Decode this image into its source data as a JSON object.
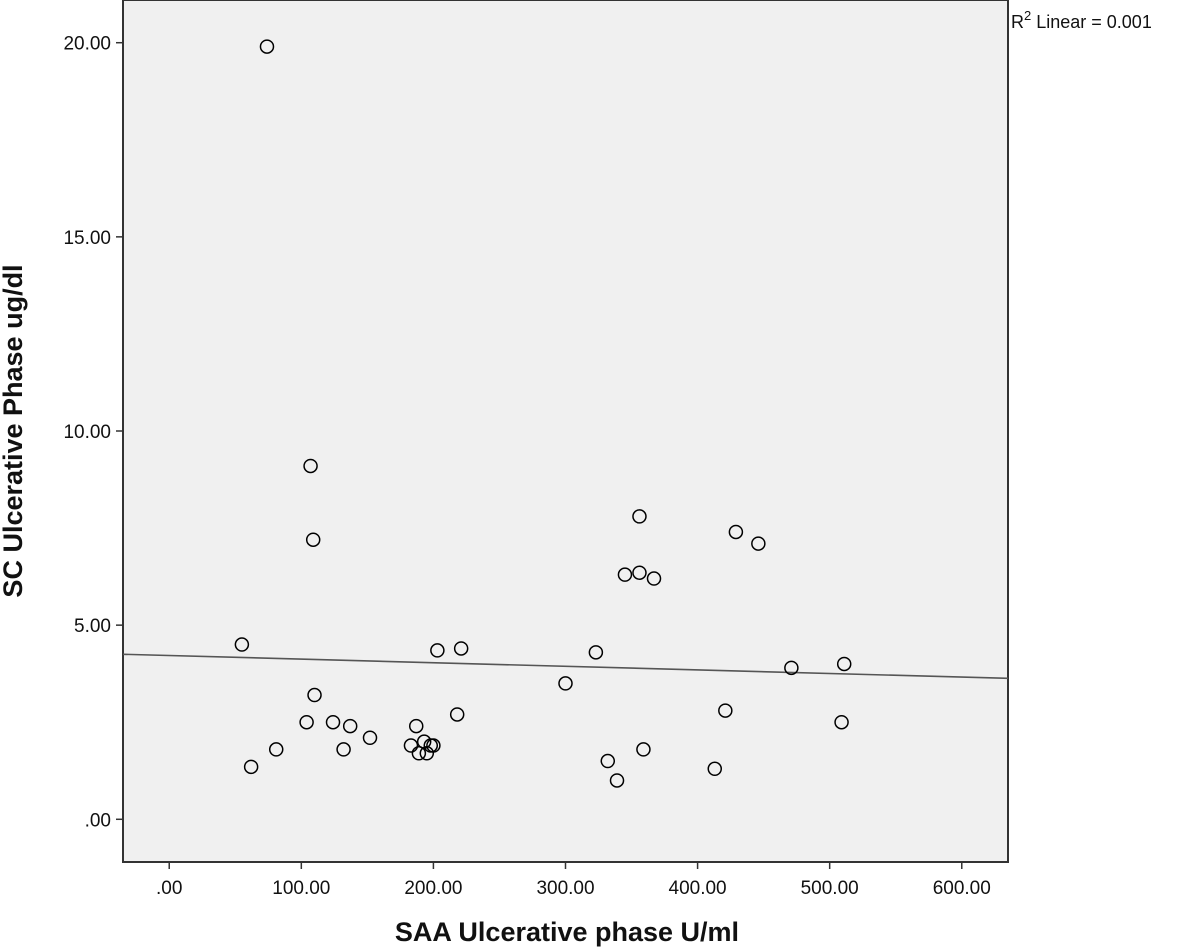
{
  "chart_data": {
    "type": "scatter",
    "xlabel": "SAA Ulcerative phase U/ml",
    "ylabel": "SC Ulcerative Phase ug/dl",
    "xlim": [
      -35,
      635
    ],
    "ylim": [
      -1.1,
      21.1
    ],
    "x_ticks": [
      0,
      100,
      200,
      300,
      400,
      500,
      600
    ],
    "x_tick_labels": [
      ".00",
      "100.00",
      "200.00",
      "300.00",
      "400.00",
      "500.00",
      "600.00"
    ],
    "y_ticks": [
      0,
      5,
      10,
      15,
      20
    ],
    "y_tick_labels": [
      ".00",
      "5.00",
      "10.00",
      "15.00",
      "20.00"
    ],
    "grid": false,
    "background": "#f0f0f0",
    "marker_color": "#000000",
    "fit_line": {
      "type": "linear",
      "x": [
        -35,
        635
      ],
      "y": [
        4.25,
        3.63
      ],
      "color": "#555555"
    },
    "annotation": {
      "prefix": "R",
      "superscript": "2",
      "text": " Linear = 0.001"
    },
    "points": [
      {
        "x": 74,
        "y": 19.9
      },
      {
        "x": 107,
        "y": 9.1
      },
      {
        "x": 109,
        "y": 7.2
      },
      {
        "x": 55,
        "y": 4.5
      },
      {
        "x": 110,
        "y": 3.2
      },
      {
        "x": 104,
        "y": 2.5
      },
      {
        "x": 124,
        "y": 2.5
      },
      {
        "x": 137,
        "y": 2.4
      },
      {
        "x": 132,
        "y": 1.8
      },
      {
        "x": 81,
        "y": 1.8
      },
      {
        "x": 62,
        "y": 1.35
      },
      {
        "x": 152,
        "y": 2.1
      },
      {
        "x": 187,
        "y": 2.4
      },
      {
        "x": 183,
        "y": 1.9
      },
      {
        "x": 193,
        "y": 2.0
      },
      {
        "x": 198,
        "y": 1.9
      },
      {
        "x": 200,
        "y": 1.9
      },
      {
        "x": 189,
        "y": 1.7
      },
      {
        "x": 195,
        "y": 1.7
      },
      {
        "x": 203,
        "y": 4.35
      },
      {
        "x": 221,
        "y": 4.4
      },
      {
        "x": 218,
        "y": 2.7
      },
      {
        "x": 300,
        "y": 3.5
      },
      {
        "x": 323,
        "y": 4.3
      },
      {
        "x": 332,
        "y": 1.5
      },
      {
        "x": 339,
        "y": 1.0
      },
      {
        "x": 356,
        "y": 7.8
      },
      {
        "x": 345,
        "y": 6.3
      },
      {
        "x": 356,
        "y": 6.35
      },
      {
        "x": 367,
        "y": 6.2
      },
      {
        "x": 359,
        "y": 1.8
      },
      {
        "x": 429,
        "y": 7.4
      },
      {
        "x": 446,
        "y": 7.1
      },
      {
        "x": 421,
        "y": 2.8
      },
      {
        "x": 413,
        "y": 1.3
      },
      {
        "x": 471,
        "y": 3.9
      },
      {
        "x": 511,
        "y": 4.0
      },
      {
        "x": 509,
        "y": 2.5
      }
    ]
  }
}
